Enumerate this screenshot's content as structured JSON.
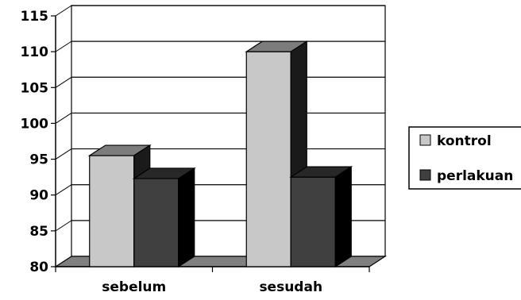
{
  "chart_data": {
    "type": "bar",
    "categories": [
      "sebelum",
      "sesudah"
    ],
    "series": [
      {
        "name": "kontrol",
        "values": [
          95.5,
          110
        ],
        "color": "#c8c8c8"
      },
      {
        "name": "perlakuan",
        "values": [
          92.3,
          92.5
        ],
        "color": "#404040"
      }
    ],
    "ylim": [
      80,
      115
    ],
    "yticks": [
      80,
      85,
      90,
      95,
      100,
      105,
      110,
      115
    ],
    "grid": true,
    "legend": "right",
    "style": "3d-column"
  }
}
